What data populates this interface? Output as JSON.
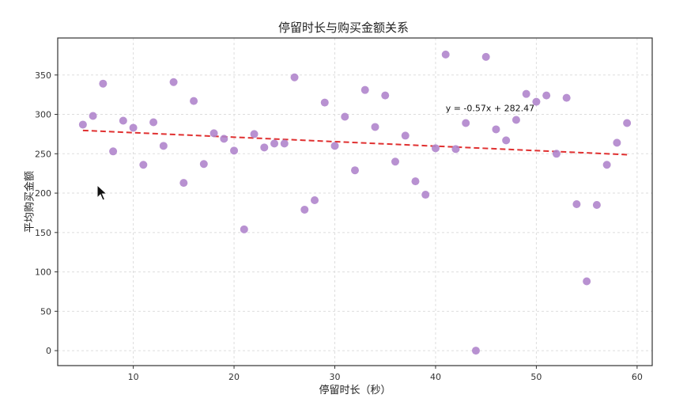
{
  "chart_data": {
    "type": "scatter",
    "title": "停留时长与购买金额关系",
    "xlabel": "停留时长（秒）",
    "ylabel": "平均购买金额",
    "xlim": [
      2.5,
      61.5
    ],
    "ylim": [
      -19,
      397
    ],
    "x_ticks": [
      10,
      20,
      30,
      40,
      50,
      60
    ],
    "y_ticks": [
      0,
      50,
      100,
      150,
      200,
      250,
      300,
      350
    ],
    "grid": true,
    "point_color": "#b085cc",
    "trend_color": "#e03030",
    "x": [
      5,
      6,
      7,
      8,
      9,
      10,
      11,
      12,
      13,
      14,
      15,
      16,
      17,
      18,
      19,
      20,
      21,
      22,
      23,
      24,
      25,
      26,
      27,
      28,
      29,
      30,
      31,
      32,
      33,
      34,
      35,
      36,
      37,
      38,
      39,
      40,
      41,
      42,
      43,
      44,
      45,
      46,
      47,
      48,
      49,
      50,
      51,
      52,
      53,
      54,
      55,
      56,
      57,
      58,
      59
    ],
    "y": [
      287,
      298,
      339,
      253,
      292,
      283,
      236,
      290,
      260,
      341,
      213,
      317,
      237,
      276,
      269,
      254,
      154,
      275,
      258,
      263,
      263,
      347,
      179,
      191,
      315,
      260,
      297,
      229,
      331,
      284,
      324,
      240,
      273,
      215,
      198,
      257,
      376,
      256,
      289,
      0,
      373,
      281,
      267,
      293,
      326,
      316,
      324,
      250,
      321,
      186,
      88,
      185,
      236,
      264,
      289
    ],
    "trendline": {
      "slope": -0.57,
      "intercept": 282.47,
      "x_start": 5,
      "x_end": 59,
      "style": "dashed"
    },
    "annotation": {
      "text": "y = -0.57x + 282.47",
      "x": 41,
      "y": 304
    }
  }
}
